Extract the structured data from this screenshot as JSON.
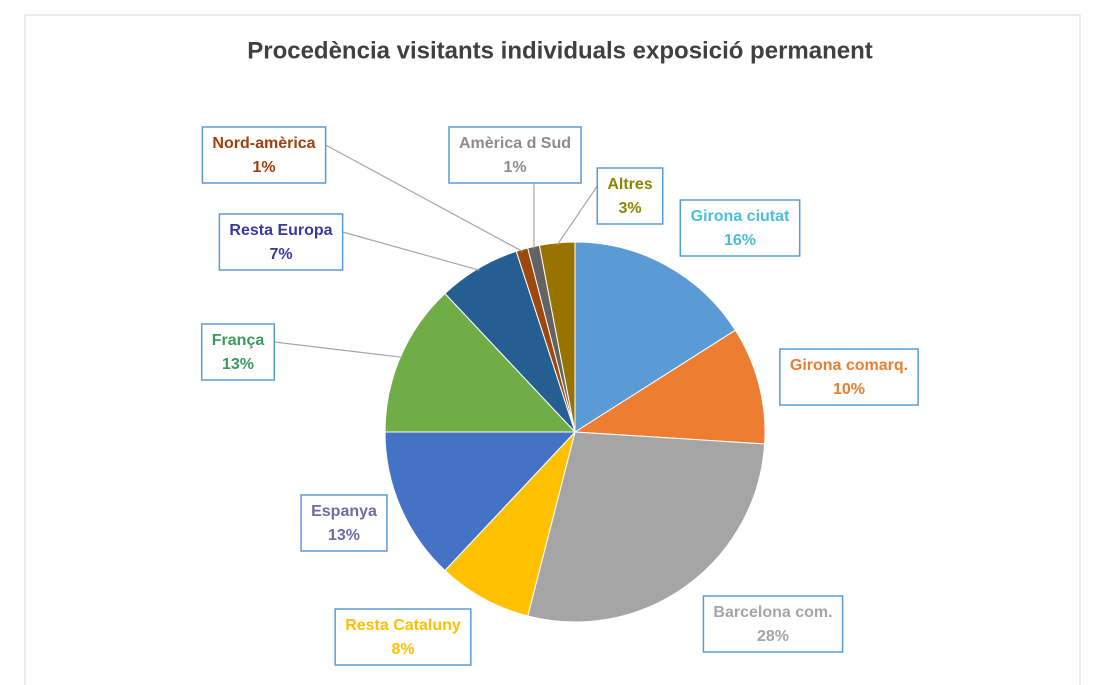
{
  "chart_data": {
    "type": "pie",
    "title": "Procedència visitants individuals exposició permanent",
    "categories": [
      "Girona ciutat",
      "Girona comarq.",
      "Barcelona com.",
      "Resta Cataluny",
      "Espanya",
      "França",
      "Resta Europa",
      "Nord-amèrica",
      "Amèrica d Sud",
      "Altres"
    ],
    "values": [
      16,
      10,
      28,
      8,
      13,
      13,
      7,
      1,
      1,
      3
    ],
    "value_labels": [
      "16%",
      "10%",
      "28%",
      "8%",
      "13%",
      "13%",
      "7%",
      "1%",
      "1%",
      "3%"
    ],
    "colors": [
      "#5b9bd5",
      "#ed7d31",
      "#a5a5a5",
      "#ffc000",
      "#4472c4",
      "#70ad47",
      "#255e91",
      "#9e480e",
      "#636363",
      "#997300"
    ],
    "label_colors": [
      "#4bbfd8",
      "#ed7d31",
      "#a5a5a5",
      "#ffc000",
      "#6b6ba6",
      "#3c9a5f",
      "#3a3a9c",
      "#a0400e",
      "#8c8c8c",
      "#8c8600"
    ]
  }
}
